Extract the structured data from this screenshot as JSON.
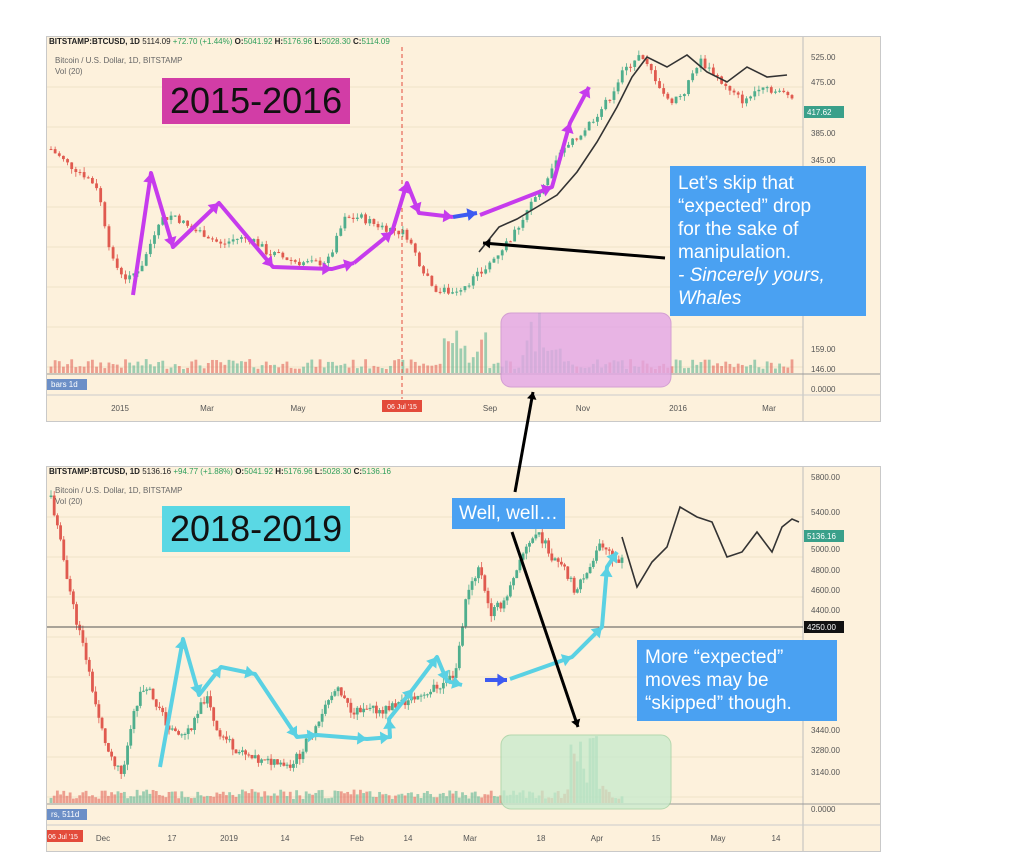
{
  "chart_data": [
    {
      "type": "candlestick",
      "symbol": "BITSTAMP:BTCUSD, 1D",
      "ohlc": {
        "price": "5114.09",
        "change": "+72.70 (+1.44%)",
        "o": "5041.92",
        "h": "5176.96",
        "l": "5028.30",
        "c": "5114.09"
      },
      "subtitle": "Bitcoin / U.S. Dollar, 1D, BITSTAMP",
      "volume_label": "Vol (20)",
      "bars_label": "bars 1d",
      "y_ticks": [
        "525.00",
        "475.00",
        "385.00",
        "345.00",
        "159.00",
        "146.00",
        "0.0000"
      ],
      "last_price": "417.62",
      "x_ticks": [
        "2015",
        "Mar",
        "May",
        "Sep",
        "Nov",
        "2016",
        "Mar"
      ],
      "date_marker": "06 Jul '15",
      "period_label": "2015-2016",
      "price_path": [
        420,
        405,
        395,
        380,
        300,
        280,
        300,
        345,
        350,
        335,
        330,
        318,
        325,
        325,
        310,
        305,
        300,
        298,
        302,
        345,
        348,
        340,
        335,
        330,
        295,
        270,
        268,
        278,
        290,
        310,
        330,
        360,
        380,
        415,
        430,
        450,
        470,
        500,
        520,
        500,
        470,
        480,
        515,
        500,
        480,
        470,
        490,
        480,
        478
      ]
    },
    {
      "type": "candlestick",
      "symbol": "BITSTAMP:BTCUSD, 1D",
      "ohlc": {
        "price": "5136.16",
        "change": "+94.77 (+1.88%)",
        "o": "5041.92",
        "h": "5176.96",
        "l": "5028.30",
        "c": "5136.16"
      },
      "subtitle": "Bitcoin / U.S. Dollar, 1D, BITSTAMP",
      "volume_label": "Vol (20)",
      "bars_label": "rs, 511d",
      "y_ticks": [
        "5800.00",
        "5400.00",
        "5000.00",
        "4800.00",
        "4600.00",
        "4400.00",
        "3440.00",
        "3280.00",
        "3140.00",
        "0.0000"
      ],
      "last_price": "5136.16",
      "marker_price": "4250.00",
      "x_ticks": [
        "Dec",
        "17",
        "2019",
        "14",
        "Feb",
        "14",
        "Mar",
        "18",
        "Apr",
        "15",
        "May",
        "14"
      ],
      "date_marker": "06 Jul '15",
      "period_label": "2018-2019",
      "price_path": [
        5700,
        5200,
        4700,
        4300,
        3800,
        3450,
        3300,
        3900,
        4100,
        3900,
        3700,
        3650,
        3750,
        4000,
        3700,
        3600,
        3500,
        3450,
        3420,
        3450,
        3400,
        3500,
        3700,
        3900,
        4050,
        3900,
        3850,
        3870,
        3880,
        3920,
        3950,
        4000,
        4050,
        4100,
        4200,
        4900,
        5100,
        4700,
        4800,
        5000,
        5300,
        5400,
        5200,
        5150,
        4900,
        5000,
        5300,
        5200,
        5150
      ]
    }
  ],
  "annotations": {
    "period1": "2015-2016",
    "period2": "2018-2019",
    "note1": [
      "Let’s skip that",
      "“expected” drop",
      "for the sake of",
      "manipulation.",
      "- Sincerely yours,",
      "Whales"
    ],
    "note2": "Well, well…",
    "note3": [
      "More “expected”",
      "moves may be",
      "“skipped” though."
    ]
  },
  "colors": {
    "panel_bg": "#fdf1dc",
    "up": "#4fae8d",
    "down": "#e05a4f",
    "magenta_tag": "#d23da6",
    "cyan_tag": "#5ad8e4",
    "magenta_path": "#c63bed",
    "cyan_path": "#5ad1e3",
    "note_blue": "#4aa1f2",
    "arrow_blue": "#3d5af1",
    "vol_box_pink": "#e3a6e6",
    "vol_box_green": "#c7ebcc"
  }
}
